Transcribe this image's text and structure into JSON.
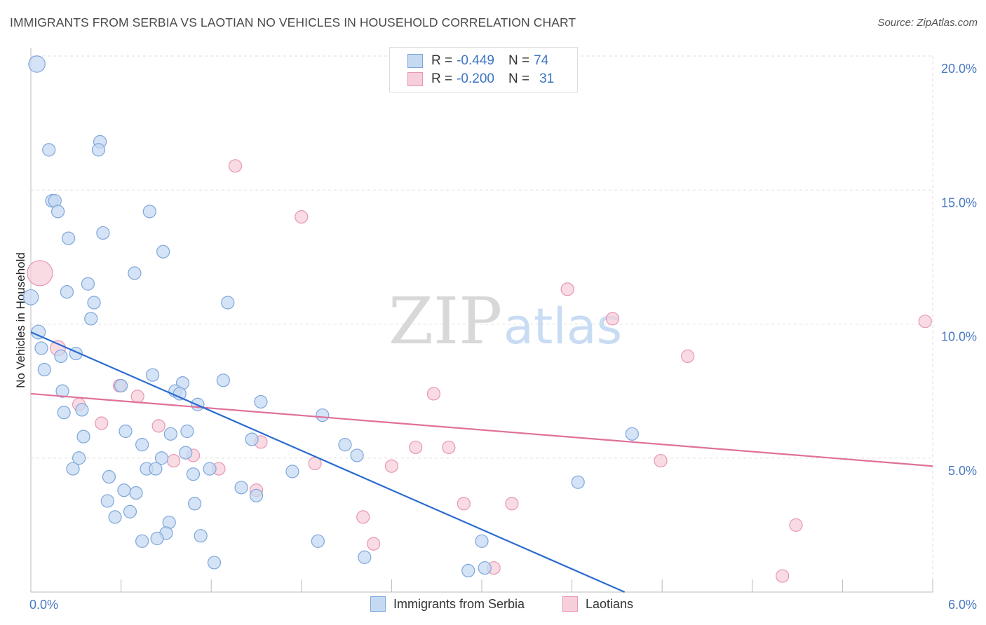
{
  "title": "IMMIGRANTS FROM SERBIA VS LAOTIAN NO VEHICLES IN HOUSEHOLD CORRELATION CHART",
  "source": "Source: ZipAtlas.com",
  "watermark": {
    "zip": "ZIP",
    "atlas": "atlas"
  },
  "legend": {
    "serbia": {
      "r_label": "R = ",
      "r_value": "-0.449",
      "n_label": "N = ",
      "n_value": "74"
    },
    "laotians": {
      "r_label": "R = ",
      "r_value": "-0.200",
      "n_label": "N = ",
      "n_value": "31"
    }
  },
  "colors": {
    "serbia_fill": "#c5d9f2",
    "serbia_stroke": "#7ea6dc",
    "serbia_line": "#2b6ccf",
    "laotians_fill": "#f7cfdb",
    "laotians_stroke": "#e996b1",
    "laotians_line": "#e0709a",
    "grid": "#dddddd",
    "tick_text": "#4a78c2"
  },
  "chart_data": {
    "type": "scatter",
    "title": "IMMIGRANTS FROM SERBIA VS LAOTIAN NO VEHICLES IN HOUSEHOLD CORRELATION CHART",
    "xlabel": "",
    "ylabel": "No Vehicles in Household",
    "xlim": [
      0,
      6
    ],
    "ylim": [
      0,
      20
    ],
    "x_tick_labels": [
      "0.0%",
      "6.0%"
    ],
    "y_ticks": [
      5,
      10,
      15,
      20
    ],
    "y_tick_labels": [
      "5.0%",
      "10.0%",
      "15.0%",
      "20.0%"
    ],
    "grid": "horizontal dashed",
    "legend_position": "top-center",
    "series": [
      {
        "name": "Immigrants from Serbia",
        "trend": {
          "x": [
            0.0,
            3.95
          ],
          "y": [
            9.7,
            0.0
          ]
        },
        "points": [
          {
            "x": 0.04,
            "y": 19.7,
            "s": 1.3
          },
          {
            "x": 0.12,
            "y": 16.5
          },
          {
            "x": 0.46,
            "y": 16.8
          },
          {
            "x": 0.45,
            "y": 16.5
          },
          {
            "x": 0.14,
            "y": 14.6
          },
          {
            "x": 0.16,
            "y": 14.6
          },
          {
            "x": 0.18,
            "y": 14.2
          },
          {
            "x": 0.79,
            "y": 14.2
          },
          {
            "x": 0.25,
            "y": 13.2
          },
          {
            "x": 0.48,
            "y": 13.4
          },
          {
            "x": 0.88,
            "y": 12.7
          },
          {
            "x": 0.69,
            "y": 11.9
          },
          {
            "x": 0.38,
            "y": 11.5
          },
          {
            "x": 0.24,
            "y": 11.2
          },
          {
            "x": 0.0,
            "y": 11.0,
            "s": 1.2
          },
          {
            "x": 0.42,
            "y": 10.8
          },
          {
            "x": 1.31,
            "y": 10.8
          },
          {
            "x": 0.4,
            "y": 10.2
          },
          {
            "x": 0.05,
            "y": 9.7,
            "s": 1.1
          },
          {
            "x": 0.07,
            "y": 9.1
          },
          {
            "x": 0.2,
            "y": 8.8
          },
          {
            "x": 0.3,
            "y": 8.9
          },
          {
            "x": 0.09,
            "y": 8.3
          },
          {
            "x": 0.81,
            "y": 8.1
          },
          {
            "x": 1.28,
            "y": 7.9
          },
          {
            "x": 1.01,
            "y": 7.8
          },
          {
            "x": 0.6,
            "y": 7.7
          },
          {
            "x": 0.96,
            "y": 7.5
          },
          {
            "x": 0.99,
            "y": 7.4
          },
          {
            "x": 0.21,
            "y": 7.5
          },
          {
            "x": 1.11,
            "y": 7.0
          },
          {
            "x": 1.53,
            "y": 7.1
          },
          {
            "x": 0.34,
            "y": 6.8
          },
          {
            "x": 0.22,
            "y": 6.7
          },
          {
            "x": 1.94,
            "y": 6.6
          },
          {
            "x": 0.63,
            "y": 6.0
          },
          {
            "x": 0.93,
            "y": 5.9
          },
          {
            "x": 1.04,
            "y": 6.0
          },
          {
            "x": 0.35,
            "y": 5.8
          },
          {
            "x": 0.74,
            "y": 5.5
          },
          {
            "x": 1.47,
            "y": 5.7
          },
          {
            "x": 2.09,
            "y": 5.5
          },
          {
            "x": 1.03,
            "y": 5.2
          },
          {
            "x": 0.32,
            "y": 5.0
          },
          {
            "x": 0.87,
            "y": 5.0
          },
          {
            "x": 2.17,
            "y": 5.1
          },
          {
            "x": 0.28,
            "y": 4.6
          },
          {
            "x": 0.77,
            "y": 4.6
          },
          {
            "x": 0.83,
            "y": 4.6
          },
          {
            "x": 1.19,
            "y": 4.6
          },
          {
            "x": 1.08,
            "y": 4.4
          },
          {
            "x": 1.74,
            "y": 4.5
          },
          {
            "x": 0.52,
            "y": 4.3
          },
          {
            "x": 1.4,
            "y": 3.9
          },
          {
            "x": 3.64,
            "y": 4.1
          },
          {
            "x": 4.0,
            "y": 5.9
          },
          {
            "x": 0.62,
            "y": 3.8
          },
          {
            "x": 0.7,
            "y": 3.7
          },
          {
            "x": 0.51,
            "y": 3.4
          },
          {
            "x": 1.5,
            "y": 3.6
          },
          {
            "x": 1.09,
            "y": 3.3
          },
          {
            "x": 0.66,
            "y": 3.0
          },
          {
            "x": 0.56,
            "y": 2.8
          },
          {
            "x": 0.92,
            "y": 2.6
          },
          {
            "x": 0.9,
            "y": 2.2
          },
          {
            "x": 0.84,
            "y": 2.0
          },
          {
            "x": 1.13,
            "y": 2.1
          },
          {
            "x": 0.74,
            "y": 1.9
          },
          {
            "x": 1.91,
            "y": 1.9
          },
          {
            "x": 3.0,
            "y": 1.9
          },
          {
            "x": 1.22,
            "y": 1.1
          },
          {
            "x": 2.22,
            "y": 1.3
          },
          {
            "x": 2.91,
            "y": 0.8
          },
          {
            "x": 3.02,
            "y": 0.9
          }
        ]
      },
      {
        "name": "Laotians",
        "trend": {
          "x": [
            0.0,
            6.0
          ],
          "y": [
            7.4,
            4.7
          ]
        },
        "points": [
          {
            "x": 0.06,
            "y": 11.9,
            "s": 2.0
          },
          {
            "x": 1.36,
            "y": 15.9
          },
          {
            "x": 1.8,
            "y": 14.0
          },
          {
            "x": 3.57,
            "y": 11.3
          },
          {
            "x": 3.87,
            "y": 10.2
          },
          {
            "x": 5.95,
            "y": 10.1
          },
          {
            "x": 0.18,
            "y": 9.1,
            "s": 1.2
          },
          {
            "x": 4.37,
            "y": 8.8
          },
          {
            "x": 0.59,
            "y": 7.7
          },
          {
            "x": 0.71,
            "y": 7.3
          },
          {
            "x": 2.68,
            "y": 7.4
          },
          {
            "x": 0.32,
            "y": 7.0
          },
          {
            "x": 0.47,
            "y": 6.3
          },
          {
            "x": 0.85,
            "y": 6.2
          },
          {
            "x": 1.53,
            "y": 5.6
          },
          {
            "x": 2.56,
            "y": 5.4
          },
          {
            "x": 2.78,
            "y": 5.4
          },
          {
            "x": 1.08,
            "y": 5.1
          },
          {
            "x": 0.95,
            "y": 4.9
          },
          {
            "x": 4.19,
            "y": 4.9
          },
          {
            "x": 1.89,
            "y": 4.8
          },
          {
            "x": 2.4,
            "y": 4.7
          },
          {
            "x": 1.25,
            "y": 4.6
          },
          {
            "x": 1.5,
            "y": 3.8
          },
          {
            "x": 2.88,
            "y": 3.3
          },
          {
            "x": 3.2,
            "y": 3.3
          },
          {
            "x": 2.21,
            "y": 2.8
          },
          {
            "x": 5.09,
            "y": 2.5
          },
          {
            "x": 2.28,
            "y": 1.8
          },
          {
            "x": 3.08,
            "y": 0.9
          },
          {
            "x": 5.0,
            "y": 0.6
          }
        ]
      }
    ]
  },
  "bottom_legend": [
    {
      "label": "Immigrants from Serbia"
    },
    {
      "label": "Laotians"
    }
  ]
}
